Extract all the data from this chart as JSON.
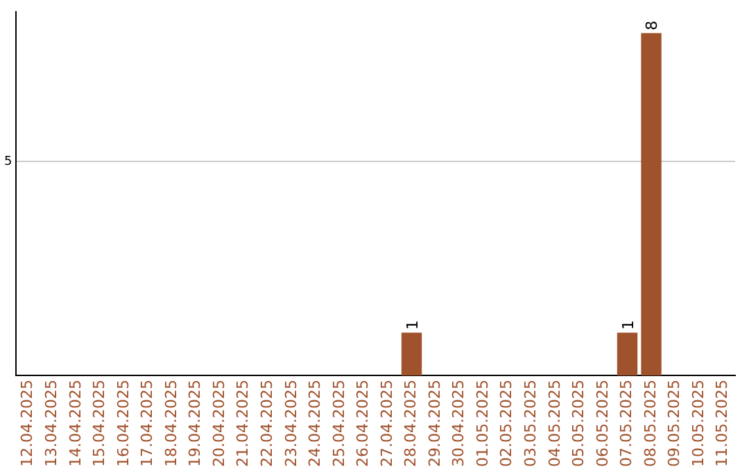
{
  "chart_data": {
    "type": "bar",
    "categories": [
      "12.04.2025",
      "13.04.2025",
      "14.04.2025",
      "15.04.2025",
      "16.04.2025",
      "17.04.2025",
      "18.04.2025",
      "19.04.2025",
      "20.04.2025",
      "21.04.2025",
      "22.04.2025",
      "23.04.2025",
      "24.04.2025",
      "25.04.2025",
      "26.04.2025",
      "27.04.2025",
      "28.04.2025",
      "29.04.2025",
      "30.04.2025",
      "01.05.2025",
      "02.05.2025",
      "03.05.2025",
      "04.05.2025",
      "05.05.2025",
      "06.05.2025",
      "07.05.2025",
      "08.05.2025",
      "09.05.2025",
      "10.05.2025",
      "11.05.2025"
    ],
    "values": [
      null,
      null,
      null,
      null,
      null,
      null,
      null,
      null,
      null,
      null,
      null,
      null,
      null,
      null,
      null,
      null,
      1,
      null,
      null,
      null,
      null,
      null,
      null,
      null,
      null,
      1,
      8,
      null,
      null,
      null
    ],
    "color": "#a0522d",
    "ylim": [
      0,
      8.5
    ],
    "yticks": [
      5
    ],
    "grid": "y",
    "data_labels": true,
    "legend": false
  }
}
